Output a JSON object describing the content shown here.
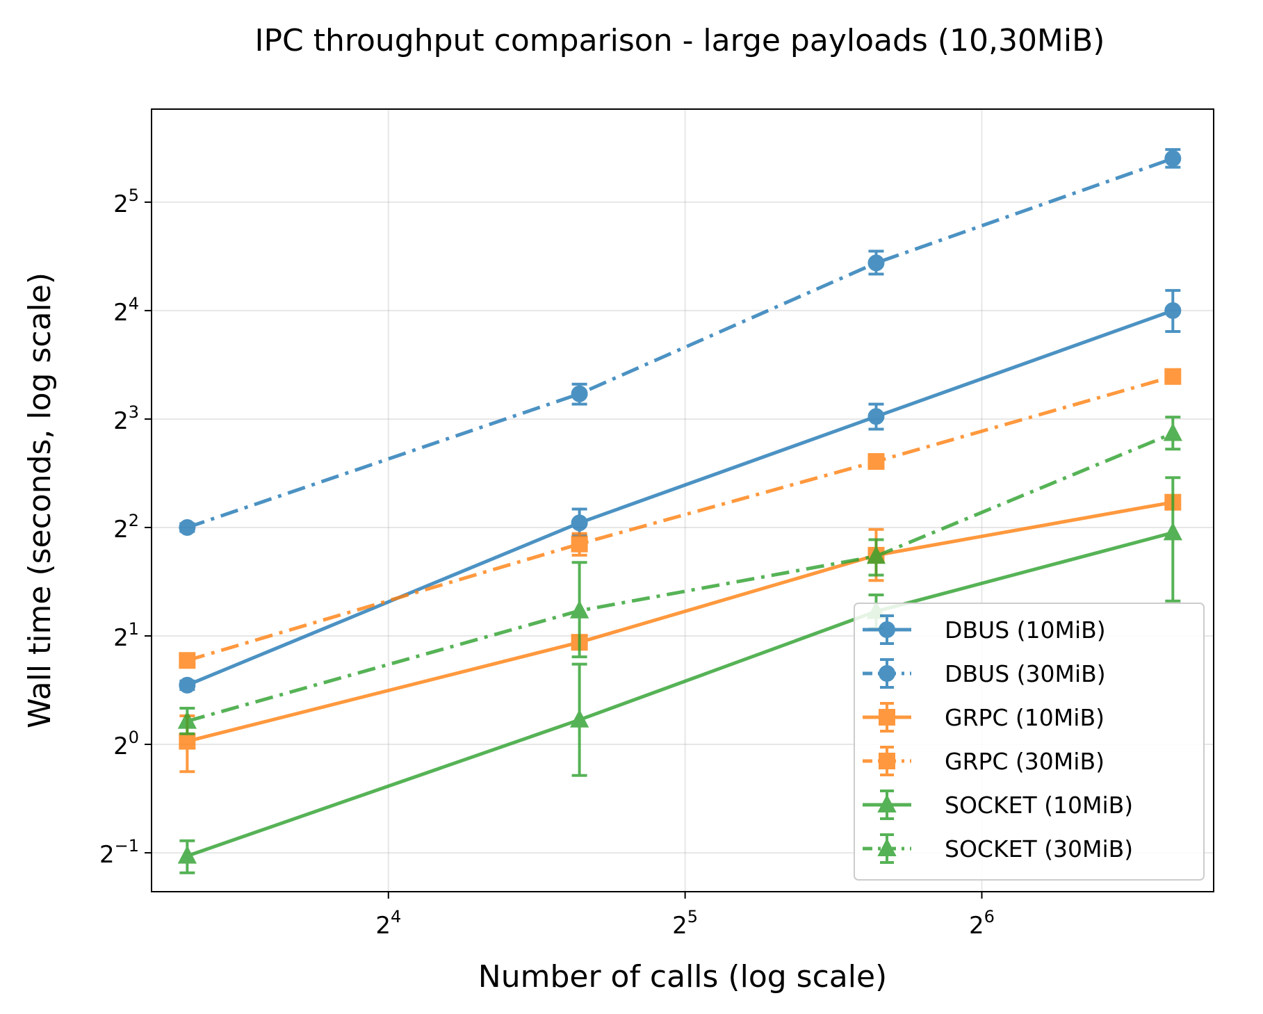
{
  "chart_data": {
    "type": "line",
    "title": "IPC throughput comparison - large payloads (10,30MiB)",
    "xlabel": "Number of calls (log scale)",
    "ylabel": "Wall time (seconds, log scale)",
    "xscale": "log2",
    "yscale": "log2",
    "x": [
      10,
      25,
      50,
      100
    ],
    "xlim": [
      9.2,
      110
    ],
    "ylim": [
      0.39,
      58
    ],
    "xticks": [
      16,
      32,
      64
    ],
    "xtick_labels": [
      {
        "base": "2",
        "exp": "4"
      },
      {
        "base": "2",
        "exp": "5"
      },
      {
        "base": "2",
        "exp": "6"
      }
    ],
    "yticks": [
      0.5,
      1,
      2,
      4,
      8,
      16,
      32
    ],
    "ytick_labels": [
      {
        "base": "2",
        "exp": "−1"
      },
      {
        "base": "2",
        "exp": "0"
      },
      {
        "base": "2",
        "exp": "1"
      },
      {
        "base": "2",
        "exp": "2"
      },
      {
        "base": "2",
        "exp": "3"
      },
      {
        "base": "2",
        "exp": "4"
      },
      {
        "base": "2",
        "exp": "5"
      }
    ],
    "grid": true,
    "legend_position": "lower-right",
    "series": [
      {
        "name": "DBUS (10MiB)",
        "color": "#1f77b4",
        "linestyle": "solid",
        "marker": "circle",
        "values": [
          1.46,
          4.12,
          8.13,
          16.0
        ],
        "err_low": [
          1.42,
          3.8,
          7.5,
          14.0
        ],
        "err_high": [
          1.5,
          4.5,
          8.8,
          18.2
        ]
      },
      {
        "name": "DBUS (30MiB)",
        "color": "#1f77b4",
        "linestyle": "dashdot",
        "marker": "circle",
        "values": [
          4.0,
          9.4,
          21.7,
          42.3
        ],
        "err_low": [
          3.9,
          8.8,
          20.2,
          40.0
        ],
        "err_high": [
          4.1,
          10.0,
          23.4,
          44.8
        ]
      },
      {
        "name": "GRPC (10MiB)",
        "color": "#ff7f0e",
        "linestyle": "solid",
        "marker": "square",
        "values": [
          1.02,
          1.92,
          3.35,
          4.7
        ],
        "err_low": [
          0.84,
          1.88,
          2.85,
          4.55
        ],
        "err_high": [
          1.2,
          1.96,
          3.95,
          4.85
        ]
      },
      {
        "name": "GRPC (30MiB)",
        "color": "#ff7f0e",
        "linestyle": "dashdot",
        "marker": "square",
        "values": [
          1.71,
          3.6,
          6.1,
          10.5
        ],
        "err_low": [
          1.66,
          3.35,
          5.95,
          10.2
        ],
        "err_high": [
          1.76,
          3.85,
          6.25,
          10.8
        ]
      },
      {
        "name": "SOCKET (10MiB)",
        "color": "#2ca02c",
        "linestyle": "solid",
        "marker": "triangle",
        "values": [
          0.49,
          1.17,
          2.34,
          3.87
        ],
        "err_low": [
          0.44,
          0.82,
          2.1,
          2.5
        ],
        "err_high": [
          0.54,
          1.67,
          2.6,
          5.5
        ]
      },
      {
        "name": "SOCKET (30MiB)",
        "color": "#2ca02c",
        "linestyle": "dashdot",
        "marker": "triangle",
        "values": [
          1.16,
          2.35,
          3.33,
          7.3
        ],
        "err_low": [
          1.07,
          1.75,
          2.95,
          6.6
        ],
        "err_high": [
          1.26,
          3.2,
          3.7,
          8.1
        ]
      }
    ]
  }
}
